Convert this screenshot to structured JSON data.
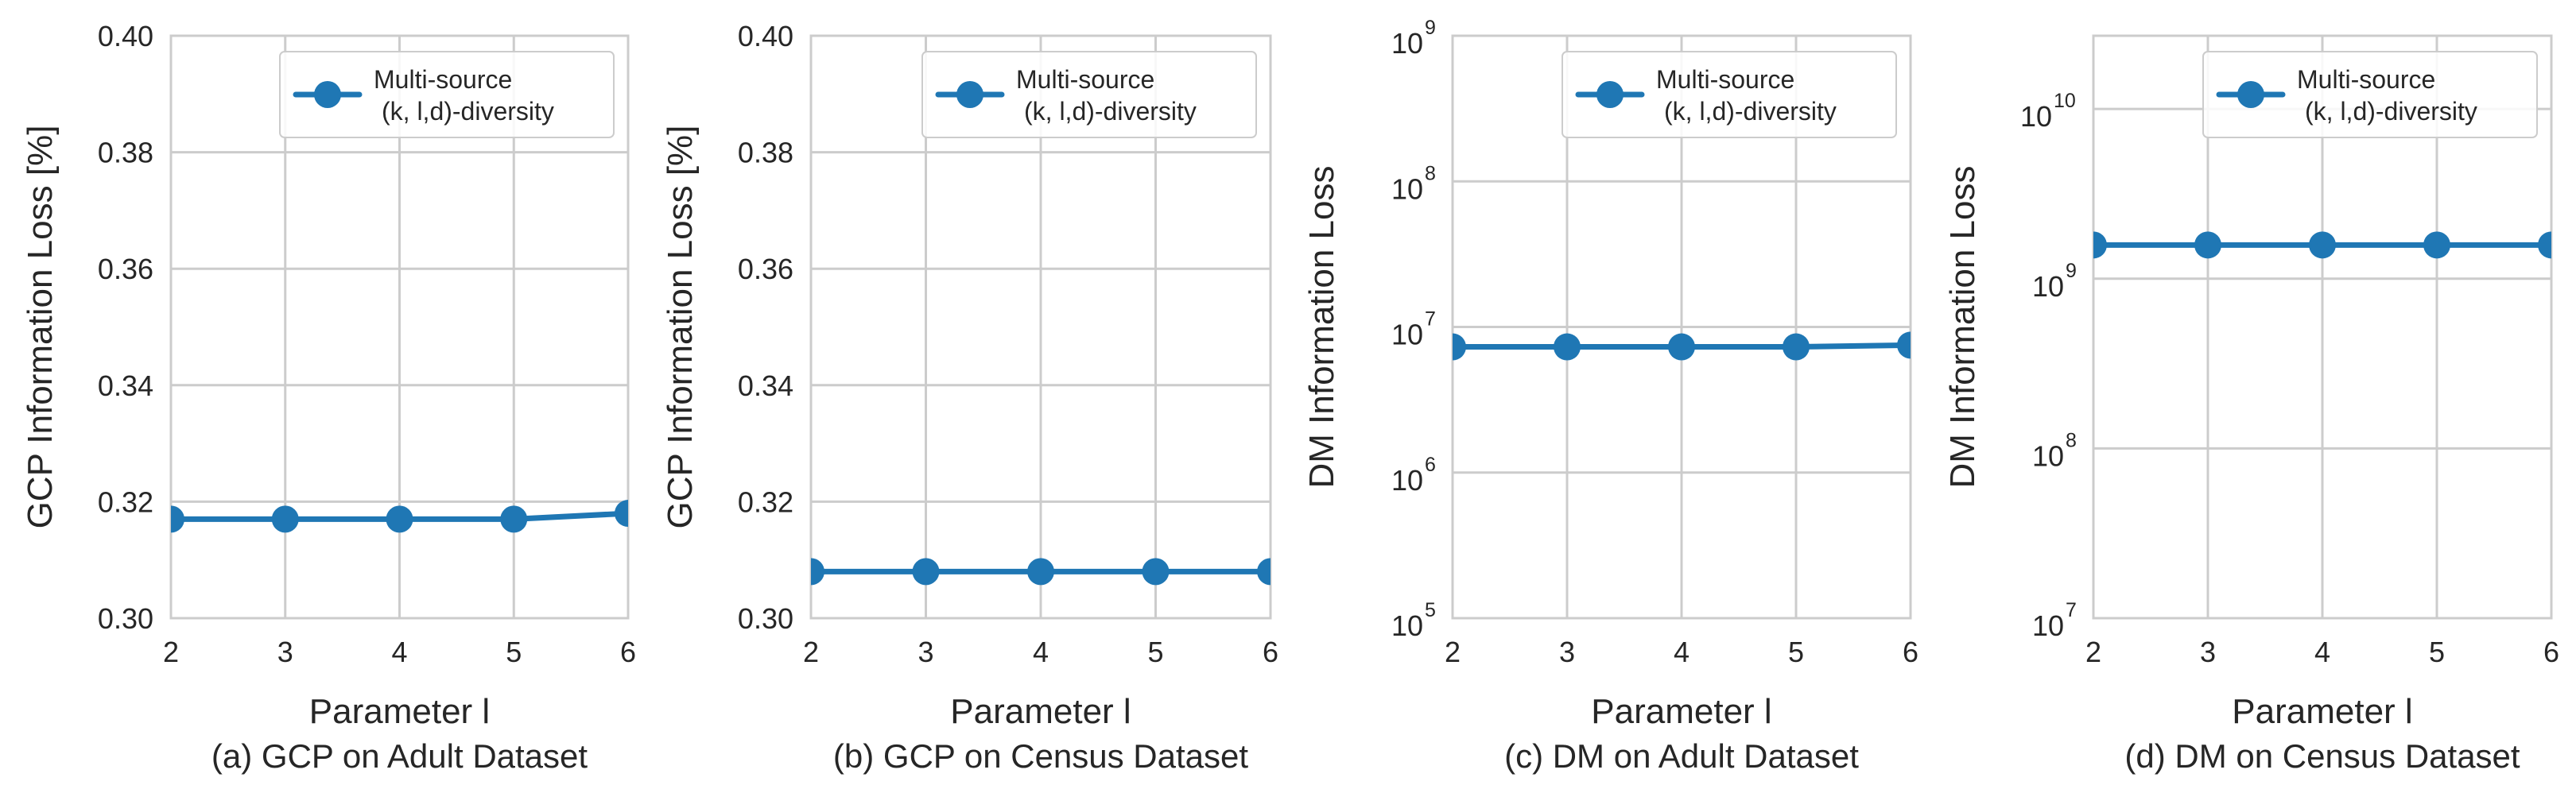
{
  "chart_data": [
    {
      "type": "line",
      "caption": "(a) GCP on Adult Dataset",
      "xlabel": "Parameter l",
      "ylabel": "GCP Information Loss [%]",
      "scale": "linear",
      "x": [
        2,
        3,
        4,
        5,
        6
      ],
      "xlim": [
        2,
        6
      ],
      "xticks": [
        "2",
        "3",
        "4",
        "5",
        "6"
      ],
      "ylim": [
        0.3,
        0.4
      ],
      "yticks": [
        0.3,
        0.32,
        0.34,
        0.36,
        0.38,
        0.4
      ],
      "ytick_labels": [
        "0.30",
        "0.32",
        "0.34",
        "0.36",
        "0.38",
        "0.40"
      ],
      "series": [
        {
          "name": "Multi-source (k, l,d)-diversity",
          "values": [
            0.317,
            0.317,
            0.317,
            0.317,
            0.318
          ]
        }
      ],
      "legend": {
        "line1": "Multi-source",
        "line2": "(k, l,d)-diversity",
        "loc": "upper-right"
      }
    },
    {
      "type": "line",
      "caption": "(b) GCP on Census Dataset",
      "xlabel": "Parameter l",
      "ylabel": "GCP Information Loss [%]",
      "scale": "linear",
      "x": [
        2,
        3,
        4,
        5,
        6
      ],
      "xlim": [
        2,
        6
      ],
      "xticks": [
        "2",
        "3",
        "4",
        "5",
        "6"
      ],
      "ylim": [
        0.3,
        0.4
      ],
      "yticks": [
        0.3,
        0.32,
        0.34,
        0.36,
        0.38,
        0.4
      ],
      "ytick_labels": [
        "0.30",
        "0.32",
        "0.34",
        "0.36",
        "0.38",
        "0.40"
      ],
      "series": [
        {
          "name": "Multi-source (k, l,d)-diversity",
          "values": [
            0.308,
            0.308,
            0.308,
            0.308,
            0.308
          ]
        }
      ],
      "legend": {
        "line1": "Multi-source",
        "line2": "(k, l,d)-diversity",
        "loc": "upper-right"
      }
    },
    {
      "type": "line",
      "caption": "(c) DM on Adult Dataset",
      "xlabel": "Parameter l",
      "ylabel": "DM Information Loss",
      "scale": "log",
      "x": [
        2,
        3,
        4,
        5,
        6
      ],
      "xlim": [
        2,
        6
      ],
      "xticks": [
        "2",
        "3",
        "4",
        "5",
        "6"
      ],
      "ylim": [
        100000,
        1000000000
      ],
      "yticks": [
        100000,
        1000000,
        10000000,
        100000000,
        1000000000
      ],
      "ytick_labels": [
        {
          "base": "10",
          "exp": "5"
        },
        {
          "base": "10",
          "exp": "6"
        },
        {
          "base": "10",
          "exp": "7"
        },
        {
          "base": "10",
          "exp": "8"
        },
        {
          "base": "10",
          "exp": "9"
        }
      ],
      "series": [
        {
          "name": "Multi-source (k, l,d)-diversity",
          "values": [
            7300000,
            7300000,
            7300000,
            7300000,
            7500000
          ]
        }
      ],
      "legend": {
        "line1": "Multi-source",
        "line2": "(k, l,d)-diversity",
        "loc": "upper-right"
      }
    },
    {
      "type": "line",
      "caption": "(d) DM on Census Dataset",
      "xlabel": "Parameter l",
      "ylabel": "DM Information Loss",
      "scale": "log",
      "x": [
        2,
        3,
        4,
        5,
        6
      ],
      "xlim": [
        2,
        6
      ],
      "xticks": [
        "2",
        "3",
        "4",
        "5",
        "6"
      ],
      "ylim": [
        10000000,
        27000000000
      ],
      "yticks": [
        10000000,
        100000000,
        1000000000,
        10000000000
      ],
      "ytick_labels": [
        {
          "base": "10",
          "exp": "7"
        },
        {
          "base": "10",
          "exp": "8"
        },
        {
          "base": "10",
          "exp": "9"
        },
        {
          "base": "10",
          "exp": "10"
        }
      ],
      "series": [
        {
          "name": "Multi-source (k, l,d)-diversity",
          "values": [
            1580000000,
            1580000000,
            1580000000,
            1580000000,
            1580000000
          ]
        }
      ],
      "legend": {
        "line1": "Multi-source",
        "line2": "(k, l,d)-diversity",
        "loc": "upper-right"
      }
    }
  ],
  "colors": {
    "series": "#1f77b4",
    "grid": "#cccccc",
    "text": "#262626"
  }
}
